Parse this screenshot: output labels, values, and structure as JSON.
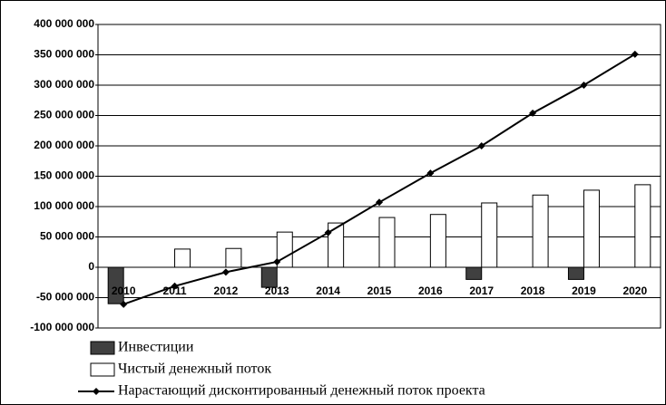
{
  "chart_data": {
    "type": "bar",
    "categories": [
      "2010",
      "2011",
      "2012",
      "2013",
      "2014",
      "2015",
      "2016",
      "2017",
      "2018",
      "2019",
      "2020"
    ],
    "series": [
      {
        "name": "Инвестиции",
        "type": "bar",
        "color": "#404040",
        "values": [
          -60000000,
          null,
          null,
          -33000000,
          null,
          null,
          null,
          -20000000,
          null,
          -20000000,
          null
        ]
      },
      {
        "name": "Чистый денежный поток",
        "type": "bar",
        "color": "#ffffff",
        "values": [
          null,
          30000000,
          31000000,
          58000000,
          73000000,
          82000000,
          87000000,
          106000000,
          119000000,
          127000000,
          136000000
        ]
      },
      {
        "name": "Нарастающий дисконтированный денежный поток проекта",
        "type": "line",
        "color": "#000000",
        "values": [
          -61000000,
          -31000000,
          -8000000,
          9000000,
          57000000,
          107000000,
          155000000,
          200000000,
          254000000,
          300000000,
          351000000
        ]
      }
    ],
    "ylim": [
      -100000000,
      400000000
    ],
    "yticks": [
      {
        "value": -100000000,
        "label": "-100 000 000"
      },
      {
        "value": -50000000,
        "label": "-50 000 000"
      },
      0,
      {
        "value": 50000000,
        "label": "50 000 000"
      },
      {
        "value": 100000000,
        "label": "100 000 000"
      },
      {
        "value": 150000000,
        "label": "150 000 000"
      },
      {
        "value": 200000000,
        "label": "200 000 000"
      },
      {
        "value": 250000000,
        "label": "250 000 000"
      },
      {
        "value": 300000000,
        "label": "300 000 000"
      },
      {
        "value": 350000000,
        "label": "350 000 000"
      },
      {
        "value": 400000000,
        "label": "400 000 000"
      }
    ],
    "grid": true,
    "legend": "bottom-left"
  }
}
